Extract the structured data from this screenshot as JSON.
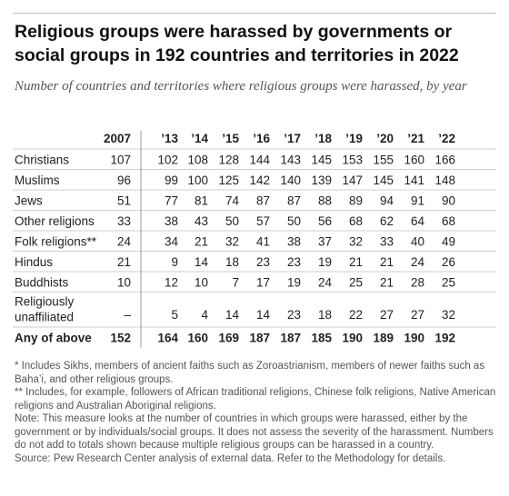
{
  "header": {
    "title": "Religious groups were harassed by governments or social groups in 192 countries and territories in 2022",
    "subtitle": "Number of countries and territories where religious groups were harassed, by year"
  },
  "chart_data": {
    "type": "table",
    "columns": [
      "2007",
      "’13",
      "’14",
      "’15",
      "’16",
      "’17",
      "’18",
      "’19",
      "’20",
      "’21",
      "’22"
    ],
    "rows": [
      {
        "label": [
          "Christians"
        ],
        "values": [
          "107",
          "102",
          "108",
          "128",
          "144",
          "143",
          "145",
          "153",
          "155",
          "160",
          "166"
        ]
      },
      {
        "label": [
          "Muslims"
        ],
        "values": [
          "96",
          "99",
          "100",
          "125",
          "142",
          "140",
          "139",
          "147",
          "145",
          "141",
          "148"
        ]
      },
      {
        "label": [
          "Jews"
        ],
        "values": [
          "51",
          "77",
          "81",
          "74",
          "87",
          "87",
          "88",
          "89",
          "94",
          "91",
          "90"
        ]
      },
      {
        "label": [
          "Other religions"
        ],
        "values": [
          "33",
          "38",
          "43",
          "50",
          "57",
          "50",
          "56",
          "68",
          "62",
          "64",
          "68"
        ]
      },
      {
        "label": [
          "Folk religions**"
        ],
        "values": [
          "24",
          "34",
          "21",
          "32",
          "41",
          "38",
          "37",
          "32",
          "33",
          "40",
          "49"
        ]
      },
      {
        "label": [
          "Hindus"
        ],
        "values": [
          "21",
          "9",
          "14",
          "18",
          "23",
          "23",
          "19",
          "21",
          "21",
          "24",
          "26"
        ]
      },
      {
        "label": [
          "Buddhists"
        ],
        "values": [
          "10",
          "12",
          "10",
          "7",
          "17",
          "19",
          "24",
          "25",
          "21",
          "28",
          "25"
        ]
      },
      {
        "label": [
          "Religiously",
          "unaffiliated"
        ],
        "values": [
          "–",
          "5",
          "4",
          "14",
          "14",
          "23",
          "18",
          "22",
          "27",
          "27",
          "32"
        ]
      },
      {
        "label": [
          "Any of above"
        ],
        "values": [
          "152",
          "164",
          "160",
          "169",
          "187",
          "187",
          "185",
          "190",
          "189",
          "190",
          "192"
        ],
        "bold": true
      }
    ]
  },
  "notes": {
    "note1": "* Includes Sikhs, members of ancient faiths such as Zoroastrianism, members of newer faiths such as Baha’i, and other religious groups.",
    "note2": "** Includes, for example, followers of African traditional religions, Chinese folk religions, Native American religions and Australian Aboriginal religions.",
    "note3": "Note: This measure looks at the number of countries in which groups were harassed, either by the government or by individuals/social groups. It does not assess the severity of the harassment. Numbers do not add to totals shown because multiple religious groups can be harassed in a country.",
    "source": "Source: Pew Research Center analysis of external data. Refer to the Methodology for details."
  }
}
